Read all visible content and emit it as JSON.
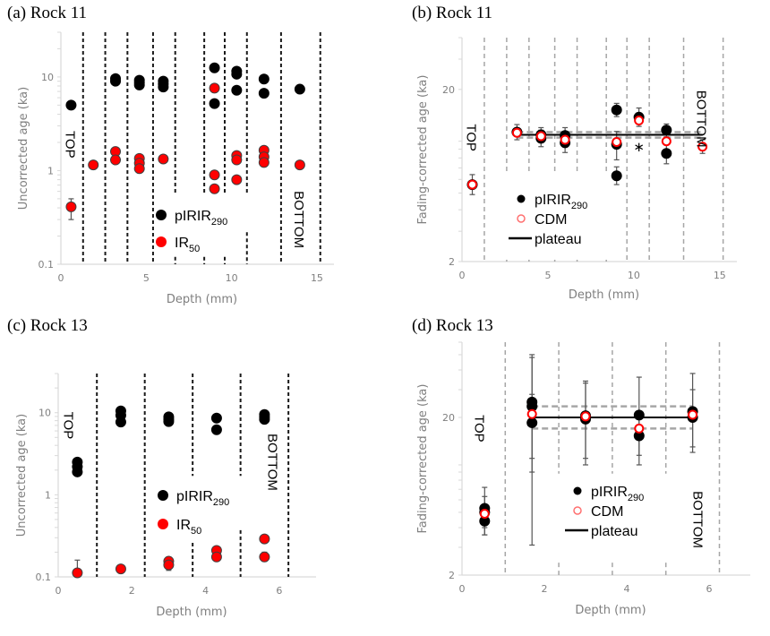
{
  "chart_data": [
    {
      "id": "a",
      "type": "scatter",
      "title": "(a) Rock 11",
      "xlabel": "Depth (mm)",
      "ylabel": "Uncorrected age (ka)",
      "yscale": "log",
      "xlim": [
        0,
        16
      ],
      "ylim": [
        0.1,
        30
      ],
      "xticks": [
        0,
        5,
        10,
        15
      ],
      "xtick_labels": [
        "0",
        "5",
        "10",
        "15"
      ],
      "yticks": [
        0.1,
        1,
        10
      ],
      "ytick_labels": [
        "0.1",
        "1",
        "10"
      ],
      "boundaries": [
        1.3,
        2.6,
        3.9,
        5.4,
        6.7,
        8.4,
        9.6,
        10.9,
        12.9,
        15.2
      ],
      "boundary_style": "black-dashed",
      "annotations": [
        {
          "text": "TOP",
          "x": 0.6,
          "y": 1.9
        },
        {
          "text": "BOTTOM",
          "x": 14.0,
          "y": 0.3
        }
      ],
      "legend": {
        "placement": "bottom-center",
        "entries": [
          {
            "label": "pIRIR",
            "sub": "290",
            "marker": "black-filled"
          },
          {
            "label": "IR",
            "sub": "50",
            "marker": "red-filled"
          }
        ]
      },
      "series": [
        {
          "name": "pIRIR290",
          "color": "#000000",
          "marker": "filled",
          "points": [
            {
              "x": 0.6,
              "y": 5.0
            },
            {
              "x": 3.2,
              "y": 9.0
            },
            {
              "x": 3.2,
              "y": 9.6
            },
            {
              "x": 4.6,
              "y": 8.2
            },
            {
              "x": 4.6,
              "y": 8.7
            },
            {
              "x": 4.6,
              "y": 9.2
            },
            {
              "x": 6.0,
              "y": 7.8
            },
            {
              "x": 6.0,
              "y": 8.4
            },
            {
              "x": 6.0,
              "y": 9.0
            },
            {
              "x": 9.0,
              "y": 12.5
            },
            {
              "x": 9.0,
              "y": 5.2
            },
            {
              "x": 10.3,
              "y": 11.5
            },
            {
              "x": 10.3,
              "y": 10.7
            },
            {
              "x": 10.3,
              "y": 7.2
            },
            {
              "x": 11.9,
              "y": 9.5
            },
            {
              "x": 11.9,
              "y": 6.7
            },
            {
              "x": 14.0,
              "y": 7.4
            }
          ]
        },
        {
          "name": "IR50",
          "color": "#ff0000",
          "marker": "filled",
          "points": [
            {
              "x": 0.6,
              "y": 0.41,
              "err": [
                0.3,
                0.5
              ]
            },
            {
              "x": 1.9,
              "y": 1.15
            },
            {
              "x": 3.2,
              "y": 1.6
            },
            {
              "x": 3.2,
              "y": 1.3
            },
            {
              "x": 4.6,
              "y": 1.35
            },
            {
              "x": 4.6,
              "y": 1.2
            },
            {
              "x": 4.6,
              "y": 1.05
            },
            {
              "x": 6.0,
              "y": 1.33
            },
            {
              "x": 9.0,
              "y": 7.6
            },
            {
              "x": 9.0,
              "y": 0.9
            },
            {
              "x": 9.0,
              "y": 0.64
            },
            {
              "x": 10.3,
              "y": 1.45
            },
            {
              "x": 10.3,
              "y": 1.3
            },
            {
              "x": 10.3,
              "y": 0.8
            },
            {
              "x": 11.9,
              "y": 1.65
            },
            {
              "x": 11.9,
              "y": 1.4
            },
            {
              "x": 11.9,
              "y": 1.22
            },
            {
              "x": 14.0,
              "y": 1.15
            }
          ]
        }
      ]
    },
    {
      "id": "b",
      "type": "scatter",
      "title": "(b) Rock 11",
      "xlabel": "Depth (mm)",
      "ylabel": "Fading-corrected age (ka)",
      "yscale": "log",
      "xlim": [
        0,
        16
      ],
      "ylim": [
        2,
        40
      ],
      "xticks": [
        0,
        5,
        10,
        15
      ],
      "xtick_labels": [
        "0",
        "5",
        "10",
        "15"
      ],
      "yticks": [
        2,
        20
      ],
      "ytick_labels": [
        "2",
        "20"
      ],
      "boundaries": [
        1.3,
        2.6,
        3.9,
        5.4,
        6.7,
        8.4,
        9.6,
        10.9,
        12.9,
        15.2
      ],
      "boundary_style": "grey-dashed",
      "plateau": {
        "value": 10.9,
        "x_range": [
          3.2,
          14.0
        ],
        "band": [
          10.5,
          11.3
        ]
      },
      "annotations": [
        {
          "text": "TOP",
          "x": 0.6,
          "y": 10.5
        },
        {
          "text": "BOTTOM",
          "x": 14.0,
          "y": 13.5
        },
        {
          "text": "∗",
          "x": 10.3,
          "y": 9.5
        }
      ],
      "legend": {
        "placement": "bottom-center",
        "entries": [
          {
            "label": "pIRIR",
            "sub": "290",
            "marker": "black-filled"
          },
          {
            "label": "CDM",
            "sub": "",
            "marker": "red-open"
          },
          {
            "label": "plateau",
            "sub": "",
            "marker": "black-line"
          }
        ]
      },
      "series": [
        {
          "name": "pIRIR290",
          "color": "#000000",
          "marker": "filled",
          "points": [
            {
              "x": 0.6,
              "y": 5.6,
              "err": [
                4.9,
                6.4
              ]
            },
            {
              "x": 3.2,
              "y": 11.3,
              "err": [
                10.2,
                12.5
              ]
            },
            {
              "x": 4.6,
              "y": 10.9,
              "err": [
                9.9,
                12.0
              ]
            },
            {
              "x": 4.6,
              "y": 10.4,
              "err": [
                9.3,
                11.6
              ]
            },
            {
              "x": 6.0,
              "y": 10.8,
              "err": [
                9.7,
                12.0
              ]
            },
            {
              "x": 6.0,
              "y": 9.8,
              "err": [
                8.6,
                11.0
              ]
            },
            {
              "x": 9.0,
              "y": 15.2,
              "err": [
                13.9,
                16.6
              ]
            },
            {
              "x": 9.0,
              "y": 9.6,
              "err": [
                7.8,
                11.4
              ]
            },
            {
              "x": 9.0,
              "y": 6.3,
              "err": [
                5.6,
                7.1
              ]
            },
            {
              "x": 10.3,
              "y": 13.8,
              "err": [
                12.2,
                15.6
              ]
            },
            {
              "x": 11.9,
              "y": 11.6,
              "err": [
                10.6,
                12.6
              ]
            },
            {
              "x": 11.9,
              "y": 8.5,
              "err": [
                7.4,
                9.6
              ]
            }
          ]
        },
        {
          "name": "CDM",
          "color": "#ff0000",
          "marker": "open",
          "points": [
            {
              "x": 0.6,
              "y": 5.6
            },
            {
              "x": 3.2,
              "y": 11.2
            },
            {
              "x": 4.6,
              "y": 10.7
            },
            {
              "x": 6.0,
              "y": 10.2
            },
            {
              "x": 9.0,
              "y": 9.9
            },
            {
              "x": 10.3,
              "y": 13.2
            },
            {
              "x": 11.9,
              "y": 10.0
            },
            {
              "x": 14.0,
              "y": 9.3,
              "err": [
                8.5,
                10.2
              ]
            }
          ]
        }
      ]
    },
    {
      "id": "c",
      "type": "scatter",
      "title": "(c) Rock 13",
      "xlabel": "Depth (mm)",
      "ylabel": "Uncorrected age (ka)",
      "yscale": "log",
      "xlim": [
        0,
        7
      ],
      "ylim": [
        0.1,
        30
      ],
      "xticks": [
        0,
        2,
        4,
        6
      ],
      "xtick_labels": [
        "0",
        "2",
        "4",
        "6"
      ],
      "yticks": [
        0.1,
        1,
        10
      ],
      "ytick_labels": [
        "0.1",
        "1",
        "10"
      ],
      "boundaries": [
        1.05,
        2.35,
        3.65,
        4.95,
        6.25
      ],
      "boundary_style": "black-dashed",
      "annotations": [
        {
          "text": "TOP",
          "x": 0.3,
          "y": 7.0
        },
        {
          "text": "BOTTOM",
          "x": 5.85,
          "y": 2.5
        }
      ],
      "legend": {
        "placement": "center",
        "entries": [
          {
            "label": "pIRIR",
            "sub": "290",
            "marker": "black-filled"
          },
          {
            "label": "IR",
            "sub": "50",
            "marker": "red-filled"
          }
        ]
      },
      "series": [
        {
          "name": "pIRIR290",
          "color": "#000000",
          "marker": "filled",
          "points": [
            {
              "x": 0.52,
              "y": 2.5
            },
            {
              "x": 0.52,
              "y": 2.2
            },
            {
              "x": 0.52,
              "y": 1.9
            },
            {
              "x": 1.7,
              "y": 10.5
            },
            {
              "x": 1.7,
              "y": 9.3
            },
            {
              "x": 1.7,
              "y": 7.7
            },
            {
              "x": 3.0,
              "y": 8.9
            },
            {
              "x": 3.0,
              "y": 8.3
            },
            {
              "x": 3.0,
              "y": 7.8
            },
            {
              "x": 4.3,
              "y": 8.6
            },
            {
              "x": 4.3,
              "y": 6.2
            },
            {
              "x": 5.6,
              "y": 9.5
            },
            {
              "x": 5.6,
              "y": 8.9
            },
            {
              "x": 5.6,
              "y": 8.3
            }
          ]
        },
        {
          "name": "IR50",
          "color": "#ff0000",
          "marker": "filled",
          "points": [
            {
              "x": 0.52,
              "y": 0.112,
              "err": [
                0.1,
                0.16
              ]
            },
            {
              "x": 1.7,
              "y": 0.125
            },
            {
              "x": 3.0,
              "y": 0.155
            },
            {
              "x": 3.0,
              "y": 0.14,
              "err": [
                0.12,
                0.16
              ]
            },
            {
              "x": 4.3,
              "y": 0.21
            },
            {
              "x": 4.3,
              "y": 0.175
            },
            {
              "x": 5.6,
              "y": 0.29
            },
            {
              "x": 5.6,
              "y": 0.175,
              "err": [
                0.155,
                0.2
              ]
            }
          ]
        }
      ]
    },
    {
      "id": "d",
      "type": "scatter",
      "title": "(d) Rock 13",
      "xlabel": "Depth (mm)",
      "ylabel": "Fading-corrected age (ka)",
      "yscale": "log",
      "xlim": [
        0,
        7
      ],
      "ylim": [
        2,
        60
      ],
      "xticks": [
        0,
        2,
        4,
        6
      ],
      "xtick_labels": [
        "0",
        "2",
        "4",
        "6"
      ],
      "yticks": [
        2,
        20
      ],
      "ytick_labels": [
        "2",
        "20"
      ],
      "boundaries": [
        1.05,
        2.35,
        3.65,
        4.95,
        6.25
      ],
      "boundary_style": "grey-dashed",
      "plateau": {
        "value": 20.0,
        "x_range": [
          1.7,
          5.6
        ],
        "band": [
          17.0,
          23.5
        ]
      },
      "annotations": [
        {
          "text": "TOP",
          "x": 0.45,
          "y": 17.0
        },
        {
          "text": "BOTTOM",
          "x": 5.75,
          "y": 4.5
        }
      ],
      "legend": {
        "placement": "bottom-center",
        "entries": [
          {
            "label": "pIRIR",
            "sub": "290",
            "marker": "black-filled"
          },
          {
            "label": "CDM",
            "sub": "",
            "marker": "red-open"
          },
          {
            "label": "plateau",
            "sub": "",
            "marker": "black-line"
          }
        ]
      },
      "series": [
        {
          "name": "pIRIR290",
          "color": "#000000",
          "marker": "filled",
          "points": [
            {
              "x": 0.55,
              "y": 5.3,
              "err": [
                3.6,
                7.2
              ]
            },
            {
              "x": 0.55,
              "y": 5.0,
              "err": [
                4.0,
                6.3
              ]
            },
            {
              "x": 0.55,
              "y": 4.4,
              "err": [
                3.6,
                5.3
              ]
            },
            {
              "x": 1.7,
              "y": 25.0,
              "err": [
                3.1,
                50.0
              ]
            },
            {
              "x": 1.7,
              "y": 23.5,
              "err": [
                9.0,
                48.0
              ]
            },
            {
              "x": 1.7,
              "y": 18.5,
              "err": [
                11.0,
                28.0
              ]
            },
            {
              "x": 3.0,
              "y": 20.5,
              "err": [
                10.0,
                34.0
              ]
            },
            {
              "x": 3.0,
              "y": 19.5,
              "err": [
                11.0,
                33.0
              ]
            },
            {
              "x": 4.3,
              "y": 20.7,
              "err": [
                10.0,
                36.0
              ]
            },
            {
              "x": 4.3,
              "y": 15.3,
              "err": [
                11.5,
                20.5
              ]
            },
            {
              "x": 5.6,
              "y": 21.8,
              "err": [
                12.0,
                38.0
              ]
            },
            {
              "x": 5.6,
              "y": 20.0,
              "err": [
                13.0,
                30.0
              ]
            }
          ]
        },
        {
          "name": "CDM",
          "color": "#ff0000",
          "marker": "open",
          "points": [
            {
              "x": 0.55,
              "y": 4.9
            },
            {
              "x": 1.7,
              "y": 21.0
            },
            {
              "x": 3.0,
              "y": 20.3
            },
            {
              "x": 4.3,
              "y": 17.0
            },
            {
              "x": 5.6,
              "y": 20.8
            }
          ]
        }
      ]
    }
  ]
}
